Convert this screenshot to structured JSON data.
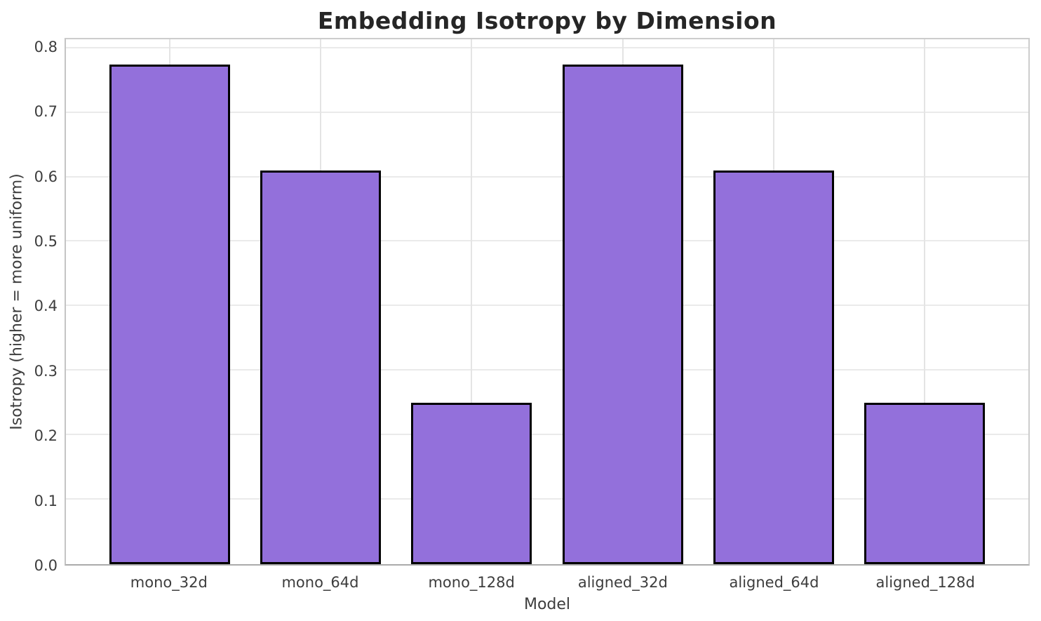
{
  "chart_data": {
    "type": "bar",
    "title": "Embedding Isotropy by Dimension",
    "xlabel": "Model",
    "ylabel": "Isotropy (higher = more uniform)",
    "categories": [
      "mono_32d",
      "mono_64d",
      "mono_128d",
      "aligned_32d",
      "aligned_64d",
      "aligned_128d"
    ],
    "values": [
      0.775,
      0.61,
      0.25,
      0.775,
      0.61,
      0.25
    ],
    "ylim": [
      0,
      0.8138
    ],
    "yticks": [
      0.0,
      0.1,
      0.2,
      0.3,
      0.4,
      0.5,
      0.6,
      0.7,
      0.8
    ],
    "ytick_labels": [
      "0.0",
      "0.1",
      "0.2",
      "0.3",
      "0.4",
      "0.5",
      "0.6",
      "0.7",
      "0.8"
    ],
    "xlim": [
      -0.69,
      5.69
    ],
    "bar_width": 0.8,
    "grid": true,
    "legend": "none",
    "bar_color": "#9370DB",
    "bar_edge_color": "#000000"
  },
  "colors": {
    "background": "#ffffff",
    "grid_h": "#eaeaea",
    "grid_v": "#e4e4e4",
    "spine": "#cdcdcd",
    "title_text": "#262626",
    "tick_text": "#3d3d3d"
  }
}
